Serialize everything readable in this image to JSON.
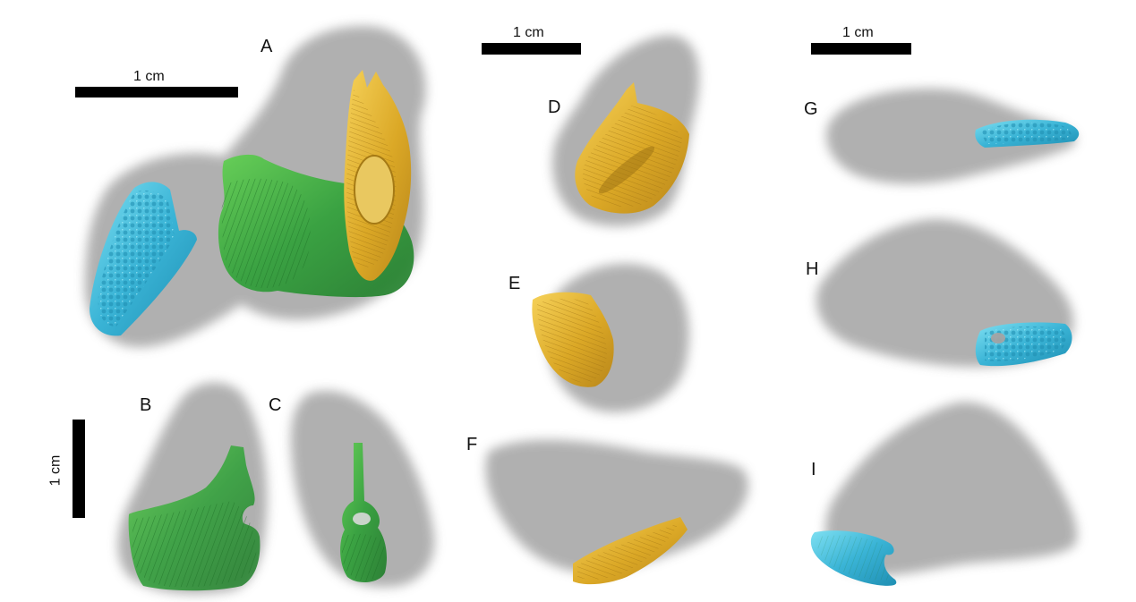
{
  "figure": {
    "panels": [
      {
        "id": "A",
        "label": "A"
      },
      {
        "id": "B",
        "label": "B"
      },
      {
        "id": "C",
        "label": "C"
      },
      {
        "id": "D",
        "label": "D"
      },
      {
        "id": "E",
        "label": "E"
      },
      {
        "id": "F",
        "label": "F"
      },
      {
        "id": "G",
        "label": "G"
      },
      {
        "id": "H",
        "label": "H"
      },
      {
        "id": "I",
        "label": "I"
      }
    ],
    "scale_bars": [
      {
        "id": "A",
        "label": "1 cm"
      },
      {
        "id": "BC",
        "label": "1 cm"
      },
      {
        "id": "DEF",
        "label": "1 cm"
      },
      {
        "id": "GHI",
        "label": "1 cm"
      }
    ],
    "colors": {
      "background": "#ffffff",
      "shadow": "#a8a8a8",
      "green": "#2fa83a",
      "gold": "#e0b12a",
      "blue": "#3ab4d6",
      "scale_bar": "#000000"
    }
  }
}
